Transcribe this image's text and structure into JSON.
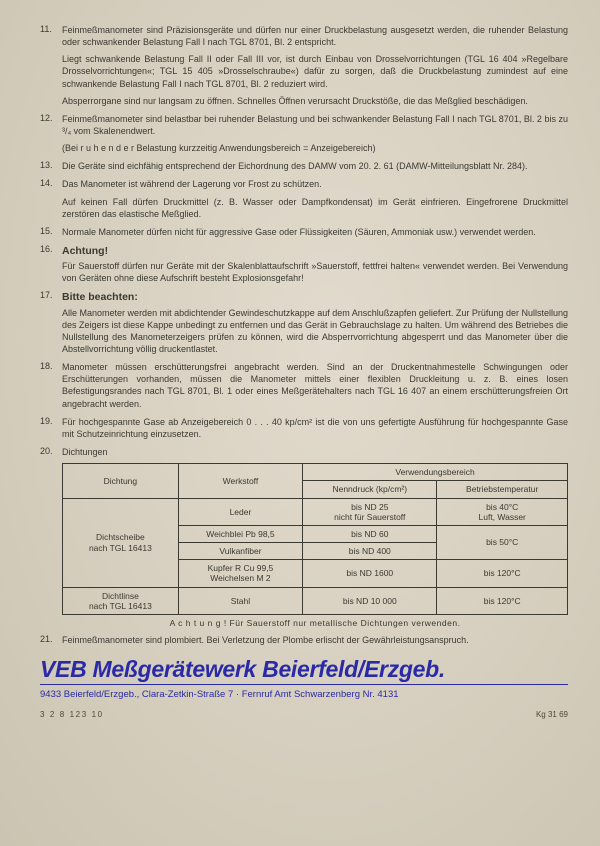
{
  "items": [
    {
      "paras": [
        "Feinmeßmanometer sind Präzisionsgeräte und dürfen nur einer Druckbelastung ausgesetzt werden, die ruhender Belastung oder schwankender Belastung Fall I nach TGL 8701, Bl. 2 entspricht.",
        "Liegt schwankende Belastung Fall II oder Fall III vor, ist durch Einbau von Drosselvorrichtungen (TGL 16 404 »Regelbare Drosselvorrichtungen«; TGL 15 405 »Drosselschraube«) dafür zu sorgen, daß die Druckbelastung zumindest auf eine schwankende Belastung Fall I nach TGL 8701, Bl. 2 reduziert wird.",
        "Absperrorgane sind nur langsam zu öffnen. Schnelles Öffnen verursacht Druckstöße, die das Meßglied beschädigen."
      ]
    },
    {
      "paras": [
        "Feinmeßmanometer sind belastbar bei ruhender Belastung und bei schwankender Belastung Fall I nach TGL 8701, Bl. 2 bis zu ³/₄ vom Skalenendwert.",
        "(Bei r u h e n d e r Belastung kurzzeitig Anwendungsbereich = Anzeigebereich)"
      ]
    },
    {
      "paras": [
        "Die Geräte sind eichfähig entsprechend der Eichordnung des DAMW vom 20. 2. 61 (DAMW-Mitteilungsblatt Nr. 284)."
      ]
    },
    {
      "paras": [
        "Das Manometer ist während der Lagerung vor Frost zu schützen.",
        "Auf keinen Fall dürfen Druckmittel (z. B. Wasser oder Dampfkondensat) im Gerät einfrieren. Eingefrorene Druckmittel zerstören das elastische Meßglied."
      ]
    },
    {
      "paras": [
        "Normale Manometer dürfen nicht für aggressive Gase oder Flüssigkeiten (Säuren, Ammoniak usw.) verwendet werden."
      ]
    },
    {
      "heading": "Achtung!",
      "paras": [
        "Für Sauerstoff dürfen nur Geräte mit der Skalenblattaufschrift »Sauerstoff, fettfrei halten« verwendet werden. Bei Verwendung von Geräten ohne diese Aufschrift besteht Explosionsgefahr!"
      ]
    },
    {
      "heading": "Bitte beachten:",
      "paras": [
        "Alle Manometer werden mit abdichtender Gewindeschutzkappe auf dem Anschlußzapfen geliefert. Zur Prüfung der Nullstellung des Zeigers ist diese Kappe unbedingt zu entfernen und das Gerät in Gebrauchslage zu halten. Um während des Betriebes die Nullstellung des Manometerzeigers prüfen zu können, wird die Absperrvorrichtung abgesperrt und das Manometer über die Abstellvorrichtung völlig druckentlastet."
      ]
    },
    {
      "paras": [
        "Manometer müssen erschütterungsfrei angebracht werden. Sind an der Druckentnahmestelle Schwingungen oder Erschütterungen vorhanden, müssen die Manometer mittels einer flexiblen Druckleitung u. z. B. eines losen Befestigungsrandes nach TGL 8701, Bl. 1 oder eines Meßgerätehalters nach TGL 16 407 an einem erschütterungsfreien Ort angebracht werden."
      ]
    },
    {
      "paras": [
        "Für hochgespannte Gase ab Anzeigebereich 0 . . . 40 kp/cm² ist die von uns gefertigte Ausführung für hochgespannte Gase mit Schutzeinrichtung einzusetzen."
      ]
    },
    {
      "paras": [
        "Dichtungen"
      ]
    }
  ],
  "table": {
    "headers": {
      "c1": "Dichtung",
      "c2": "Werkstoff",
      "c3": "Verwendungsbereich",
      "c3a": "Nenndruck (kp/cm²)",
      "c3b": "Betriebstemperatur"
    },
    "r1": {
      "type": "Dichtscheibe\nnach TGL 16413",
      "mat": "Leder",
      "nd": "bis ND 25\nnicht für Sauerstoff",
      "temp": "bis 40°C\nLuft, Wasser"
    },
    "r2": {
      "mat": "Weichblei Pb 98,5",
      "nd": "bis ND 60",
      "temp": "bis 50°C"
    },
    "r3": {
      "mat": "Vulkanfiber",
      "nd": "bis ND 400"
    },
    "r4": {
      "mat": "Kupfer R Cu 99,5\nWeichelsen M 2",
      "nd": "bis ND 1600",
      "temp": "bis 120°C"
    },
    "r5": {
      "type": "Dichtlinse\nnach TGL 16413",
      "mat": "Stahl",
      "nd": "bis ND 10 000",
      "temp": "bis 120°C"
    },
    "note": "A c h t u n g !   Für Sauerstoff nur metallische Dichtungen verwenden."
  },
  "item21": "Feinmeßmanometer sind plombiert. Bei Verletzung der Plombe erlischt der Gewährleistungsanspruch.",
  "company": "VEB Meßgerätewerk Beierfeld/Erzgeb.",
  "address": "9433 Beierfeld/Erzgeb., Clara-Zetkin-Straße 7 · Fernruf Amt Schwarzenberg Nr. 4131",
  "footer_left": "3 2 8 123 10",
  "footer_right": "Kg 31 69",
  "colors": {
    "text": "#3a3932",
    "brand": "#2a2aa6",
    "paper": "#dbd4c6"
  }
}
